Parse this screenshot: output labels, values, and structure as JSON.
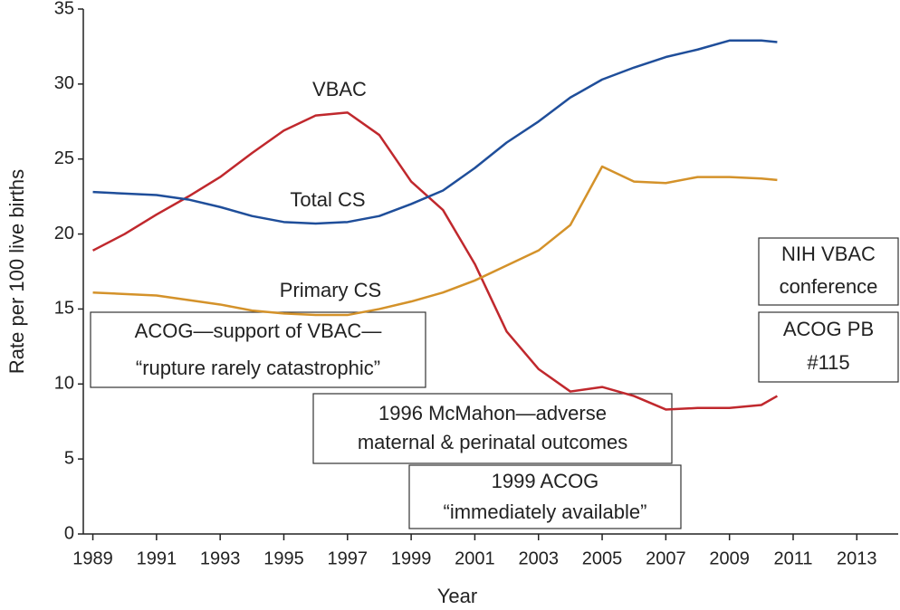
{
  "chart_data": {
    "type": "line",
    "x_label": "Year",
    "y_label": "Rate per 100 live births",
    "x": [
      1989,
      1990,
      1991,
      1992,
      1993,
      1994,
      1995,
      1996,
      1997,
      1998,
      1999,
      2000,
      2001,
      2002,
      2003,
      2004,
      2005,
      2006,
      2007,
      2008,
      2009,
      2010,
      2010.5
    ],
    "series": [
      {
        "name": "VBAC",
        "color": "#c0282d",
        "values": [
          18.9,
          20.0,
          21.3,
          22.5,
          23.8,
          25.4,
          26.9,
          27.9,
          28.1,
          26.6,
          23.5,
          21.6,
          18.0,
          13.5,
          11.0,
          9.5,
          9.8,
          9.2,
          8.3,
          8.4,
          8.4,
          8.6,
          9.2
        ]
      },
      {
        "name": "Total CS",
        "color": "#1f4e9a",
        "values": [
          22.8,
          22.7,
          22.6,
          22.3,
          21.8,
          21.2,
          20.8,
          20.7,
          20.8,
          21.2,
          22.0,
          22.9,
          24.4,
          26.1,
          27.5,
          29.1,
          30.3,
          31.1,
          31.8,
          32.3,
          32.9,
          32.9,
          32.8
        ]
      },
      {
        "name": "Primary CS",
        "color": "#d4922a",
        "values": [
          16.1,
          16.0,
          15.9,
          15.6,
          15.3,
          14.9,
          14.7,
          14.6,
          14.6,
          15.0,
          15.5,
          16.1,
          16.9,
          17.9,
          18.9,
          20.6,
          24.5,
          23.5,
          23.4,
          23.8,
          23.8,
          23.7,
          23.6
        ]
      }
    ],
    "xlim": [
      1988.7,
      2014.3
    ],
    "xticks": [
      1989,
      1991,
      1993,
      1995,
      1997,
      1999,
      2001,
      2003,
      2005,
      2007,
      2009,
      2011,
      2013
    ],
    "ylim": [
      0,
      35
    ],
    "yticks": [
      0,
      5,
      10,
      15,
      20,
      25,
      30,
      35
    ],
    "annotations": [
      {
        "lines": [
          "ACOG—support of VBAC—",
          "“rupture rarely catastrophic”"
        ]
      },
      {
        "lines": [
          "1996 McMahon—adverse",
          "maternal & perinatal outcomes"
        ]
      },
      {
        "lines": [
          "1999 ACOG",
          "“immediately available”"
        ]
      },
      {
        "lines": [
          "NIH VBAC",
          "conference"
        ]
      },
      {
        "lines": [
          "ACOG PB",
          "#115"
        ]
      }
    ]
  }
}
